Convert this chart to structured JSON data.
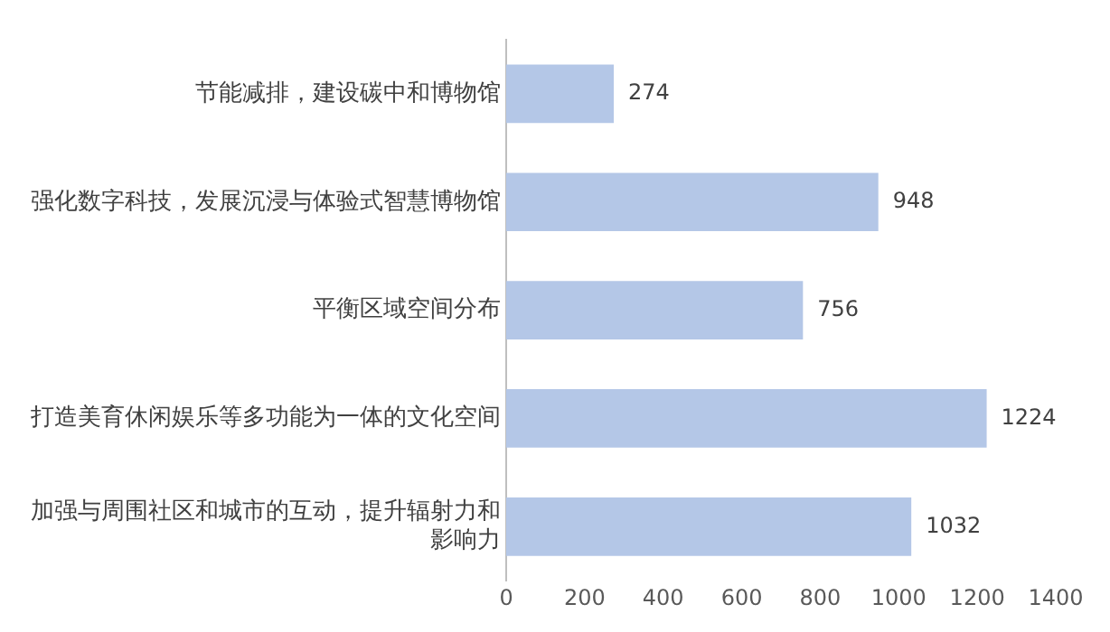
{
  "chart_data": {
    "type": "bar",
    "orientation": "horizontal",
    "categories": [
      "节能减排，建设碳中和博物馆",
      "强化数字科技，发展沉浸与体验式智慧博物馆",
      "平衡区域空间分布",
      "打造美育休闲娱乐等多功能为一体的文化空间",
      "加强与周围社区和城市的互动，提升辐射力和影响力"
    ],
    "values": [
      274,
      948,
      756,
      1224,
      1032
    ],
    "color": "#b4c7e7",
    "xlim": [
      0,
      1400
    ],
    "xticks": [
      0,
      200,
      400,
      600,
      800,
      1000,
      1200,
      1400
    ],
    "grid": false,
    "legend": false,
    "data_labels": true
  }
}
